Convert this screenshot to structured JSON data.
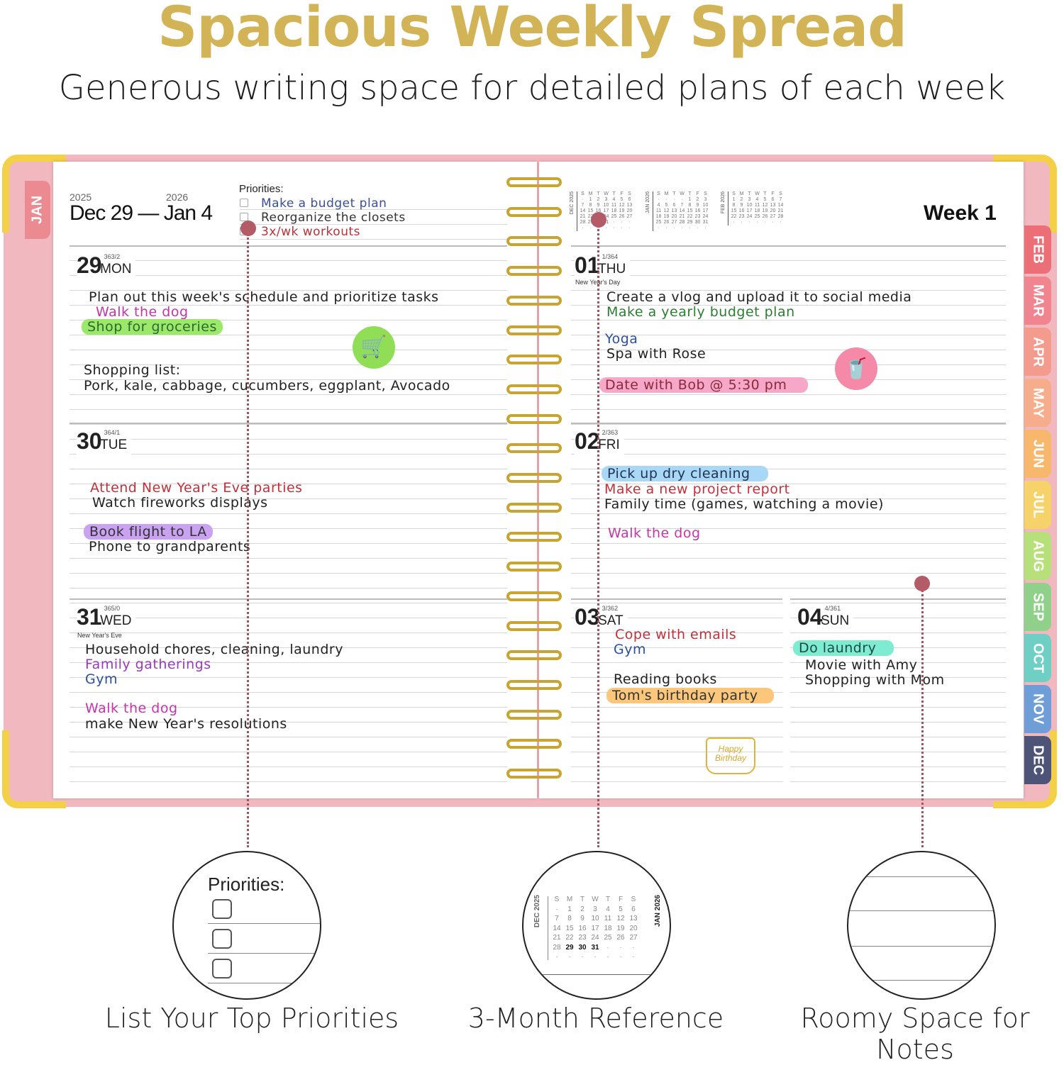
{
  "headline": {
    "title": "Spacious Weekly Spread",
    "subtitle": "Generous writing space for detailed plans of each week"
  },
  "colors": {
    "gold": "#d2b457",
    "cover": "#f2b8bf",
    "spiral": "#c9a431",
    "pin": "#b45b68"
  },
  "left_page": {
    "year_start": "2025",
    "year_end": "2026",
    "range": "Dec 29 — Jan 4",
    "priorities_label": "Priorities:",
    "priorities": [
      {
        "text": "Make a budget plan",
        "color": "#3a4f9a"
      },
      {
        "text": "Reorganize the closets",
        "color": "#333333"
      },
      {
        "text": "3x/wk workouts",
        "color": "#b8323a"
      }
    ],
    "tab": "JAN",
    "days": [
      {
        "num": "29",
        "doy": "363/2",
        "dow": "MON",
        "entries": [
          {
            "text": "Plan out this week's schedule and prioritize tasks",
            "color": "#222222"
          },
          {
            "text": "Walk the dog",
            "color": "#c535a8"
          },
          {
            "text": "Shop for groceries",
            "color": "#2c6a2c",
            "highlight": "#9be86a"
          },
          {
            "text": "Shopping list:",
            "color": "#222222"
          },
          {
            "text": "Pork, kale, cabbage, cucumbers, eggplant, Avocado",
            "color": "#222222"
          }
        ],
        "icon": "shopping-cart-icon"
      },
      {
        "num": "30",
        "doy": "364/1",
        "dow": "TUE",
        "entries": [
          {
            "text": "Attend New Year's Eve parties",
            "color": "#c0323a"
          },
          {
            "text": "Watch fireworks displays",
            "color": "#222222"
          },
          {
            "text": "Book flight to LA",
            "color": "#333333",
            "highlight": "#c9a2f2"
          },
          {
            "text": "Phone to grandparents",
            "color": "#222222"
          }
        ]
      },
      {
        "num": "31",
        "doy": "365/0",
        "dow": "WED",
        "note": "New Year's Eve",
        "entries": [
          {
            "text": "Household chores, cleaning, laundry",
            "color": "#222222"
          },
          {
            "text": "Family gatherings",
            "color": "#9a3ac0"
          },
          {
            "text": "Gym",
            "color": "#2a4fa0"
          },
          {
            "text": "Walk the dog",
            "color": "#c535a8"
          },
          {
            "text": "make New Year's resolutions",
            "color": "#222222"
          }
        ]
      }
    ]
  },
  "right_page": {
    "week": "Week 1",
    "mini_calendars": [
      {
        "label": "DEC 2025",
        "header": [
          "S",
          "M",
          "T",
          "W",
          "T",
          "F",
          "S"
        ],
        "rows": [
          [
            "·",
            "1",
            "2",
            "3",
            "4",
            "5",
            "6"
          ],
          [
            "7",
            "8",
            "9",
            "10",
            "11",
            "12",
            "13"
          ],
          [
            "14",
            "15",
            "16",
            "17",
            "18",
            "19",
            "20"
          ],
          [
            "21",
            "22",
            "23",
            "24",
            "25",
            "26",
            "27"
          ],
          [
            "28",
            "29",
            "30",
            "31",
            "·",
            "·",
            "·"
          ],
          [
            "·",
            "·",
            "·",
            "·",
            "·",
            "·",
            "·"
          ]
        ]
      },
      {
        "label": "JAN 2026",
        "header": [
          "S",
          "M",
          "T",
          "W",
          "T",
          "F",
          "S"
        ],
        "rows": [
          [
            "·",
            "·",
            "·",
            "·",
            "1",
            "2",
            "3"
          ],
          [
            "4",
            "5",
            "6",
            "7",
            "8",
            "9",
            "10"
          ],
          [
            "11",
            "12",
            "13",
            "14",
            "15",
            "16",
            "17"
          ],
          [
            "18",
            "19",
            "20",
            "21",
            "22",
            "23",
            "24"
          ],
          [
            "25",
            "26",
            "27",
            "28",
            "29",
            "30",
            "31"
          ],
          [
            "·",
            "·",
            "·",
            "·",
            "·",
            "·",
            "·"
          ]
        ]
      },
      {
        "label": "FEB 2026",
        "header": [
          "S",
          "M",
          "T",
          "W",
          "T",
          "F",
          "S"
        ],
        "rows": [
          [
            "1",
            "2",
            "3",
            "4",
            "5",
            "6",
            "7"
          ],
          [
            "8",
            "9",
            "10",
            "11",
            "12",
            "13",
            "14"
          ],
          [
            "15",
            "16",
            "17",
            "18",
            "19",
            "20",
            "21"
          ],
          [
            "22",
            "23",
            "24",
            "25",
            "26",
            "27",
            "28"
          ],
          [
            "·",
            "·",
            "·",
            "·",
            "·",
            "·",
            "·"
          ]
        ]
      }
    ],
    "days": [
      {
        "num": "01",
        "doy": "1/364",
        "dow": "THU",
        "note": "New Year's Day",
        "entries": [
          {
            "text": "Create a vlog and upload it to social media",
            "color": "#222222"
          },
          {
            "text": "Make a yearly budget plan",
            "color": "#2e7d32"
          },
          {
            "text": "Yoga",
            "color": "#2a4fa0"
          },
          {
            "text": "Spa with Rose",
            "color": "#222222"
          },
          {
            "text": "Date with Bob @ 5:30 pm",
            "color": "#8a2a3a",
            "highlight": "#f7a8c8"
          }
        ],
        "icon": "drink-icon"
      },
      {
        "num": "02",
        "doy": "2/363",
        "dow": "FRI",
        "entries": [
          {
            "text": "Pick up dry cleaning",
            "color": "#223355",
            "highlight": "#a8d8f5"
          },
          {
            "text": "Make a new project report",
            "color": "#c0323a"
          },
          {
            "text": "Family time (games, watching a movie)",
            "color": "#222222"
          },
          {
            "text": "Walk the dog",
            "color": "#c535a8"
          }
        ]
      },
      {
        "num": "03",
        "doy": "3/362",
        "dow": "SAT",
        "entries": [
          {
            "text": "Cope with emails",
            "color": "#c0323a"
          },
          {
            "text": "Gym",
            "color": "#2a4fa0"
          },
          {
            "text": "Reading books",
            "color": "#222222"
          },
          {
            "text": "Tom's birthday party",
            "color": "#333333",
            "highlight": "#fcc77a"
          }
        ],
        "icon": "birthday-cake-icon",
        "icon_text": "Happy Birthday"
      },
      {
        "num": "04",
        "doy": "4/361",
        "dow": "SUN",
        "entries": [
          {
            "text": "Do laundry",
            "color": "#1d4a44",
            "highlight": "#7eecd0"
          },
          {
            "text": "Movie with Amy",
            "color": "#222222"
          },
          {
            "text": "Shopping with Mom",
            "color": "#222222"
          }
        ]
      }
    ],
    "tabs": [
      {
        "label": "FEB",
        "color": "#ec6f78"
      },
      {
        "label": "MAR",
        "color": "#f0858f"
      },
      {
        "label": "APR",
        "color": "#f39c8e"
      },
      {
        "label": "MAY",
        "color": "#f5ad8c"
      },
      {
        "label": "JUN",
        "color": "#f7b76c"
      },
      {
        "label": "JUL",
        "color": "#f6d36a"
      },
      {
        "label": "AUG",
        "color": "#b7e07a"
      },
      {
        "label": "SEP",
        "color": "#8fd08a"
      },
      {
        "label": "OCT",
        "color": "#6fcfc4"
      },
      {
        "label": "NOV",
        "color": "#6e9dd8"
      },
      {
        "label": "DEC",
        "color": "#4e5478"
      }
    ]
  },
  "callouts": [
    {
      "caption": "List Your Top Priorities",
      "inner_label": "Priorities:"
    },
    {
      "caption": "3-Month Reference",
      "cal_left": "DEC 2025",
      "cal_right": "JAN 2026"
    },
    {
      "caption": "Roomy Space for Notes"
    }
  ]
}
